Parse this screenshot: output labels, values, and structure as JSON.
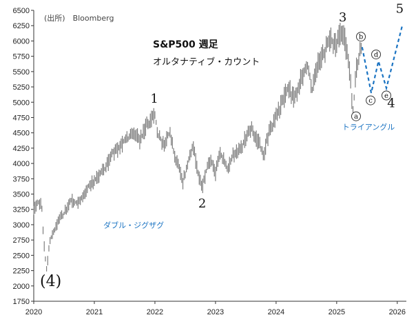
{
  "chart_data": {
    "type": "candlestick",
    "source_note": "(出所)　Bloomberg",
    "title": "S&P500 週足",
    "subtitle": "オルタナティブ・カウント",
    "y_axis": {
      "min": 1750,
      "max": 6500,
      "ticks": [
        1750,
        2000,
        2250,
        2500,
        2750,
        3000,
        3250,
        3500,
        3750,
        4000,
        4250,
        4500,
        4750,
        5000,
        5250,
        5500,
        5750,
        6000,
        6250,
        6500
      ]
    },
    "x_axis": {
      "min": 2020.0,
      "max": 2026.15,
      "ticks": [
        2020,
        2021,
        2022,
        2023,
        2024,
        2025,
        2026
      ]
    },
    "price_path": [
      [
        2020.0,
        3230
      ],
      [
        2020.08,
        3380
      ],
      [
        2020.13,
        3330
      ],
      [
        2020.17,
        2680
      ],
      [
        2020.21,
        2240
      ],
      [
        2020.27,
        2760
      ],
      [
        2020.35,
        2950
      ],
      [
        2020.45,
        3120
      ],
      [
        2020.55,
        3260
      ],
      [
        2020.62,
        3400
      ],
      [
        2020.7,
        3360
      ],
      [
        2020.82,
        3440
      ],
      [
        2020.92,
        3660
      ],
      [
        2021.0,
        3720
      ],
      [
        2021.1,
        3830
      ],
      [
        2021.2,
        3940
      ],
      [
        2021.3,
        4180
      ],
      [
        2021.4,
        4240
      ],
      [
        2021.5,
        4380
      ],
      [
        2021.6,
        4430
      ],
      [
        2021.7,
        4480
      ],
      [
        2021.75,
        4360
      ],
      [
        2021.85,
        4600
      ],
      [
        2021.93,
        4700
      ],
      [
        2022.0,
        4780
      ],
      [
        2022.05,
        4470
      ],
      [
        2022.15,
        4300
      ],
      [
        2022.25,
        4520
      ],
      [
        2022.32,
        4150
      ],
      [
        2022.4,
        3900
      ],
      [
        2022.46,
        3670
      ],
      [
        2022.55,
        4050
      ],
      [
        2022.63,
        4280
      ],
      [
        2022.72,
        3780
      ],
      [
        2022.78,
        3590
      ],
      [
        2022.85,
        3900
      ],
      [
        2022.93,
        4050
      ],
      [
        2023.0,
        3840
      ],
      [
        2023.08,
        4150
      ],
      [
        2023.2,
        3920
      ],
      [
        2023.3,
        4160
      ],
      [
        2023.4,
        4200
      ],
      [
        2023.5,
        4440
      ],
      [
        2023.58,
        4580
      ],
      [
        2023.68,
        4400
      ],
      [
        2023.8,
        4150
      ],
      [
        2023.88,
        4500
      ],
      [
        2024.0,
        4760
      ],
      [
        2024.1,
        5000
      ],
      [
        2024.2,
        5230
      ],
      [
        2024.3,
        5050
      ],
      [
        2024.4,
        5350
      ],
      [
        2024.52,
        5600
      ],
      [
        2024.6,
        5200
      ],
      [
        2024.68,
        5620
      ],
      [
        2024.8,
        5820
      ],
      [
        2024.9,
        6050
      ],
      [
        2025.0,
        5900
      ],
      [
        2025.05,
        6120
      ],
      [
        2025.12,
        6100
      ],
      [
        2025.2,
        5600
      ],
      [
        2025.27,
        4850
      ],
      [
        2025.32,
        5500
      ],
      [
        2025.38,
        5800
      ],
      [
        2025.42,
        5900
      ]
    ],
    "projection": [
      [
        2025.42,
        5900
      ],
      [
        2025.57,
        5150
      ],
      [
        2025.69,
        5670
      ],
      [
        2025.82,
        5230
      ],
      [
        2026.08,
        6240
      ]
    ],
    "wave_labels": [
      {
        "text": "(4)",
        "x": 2020.28,
        "y": 2000
      },
      {
        "text": "1",
        "x": 2021.99,
        "y": 4990
      },
      {
        "text": "2",
        "x": 2022.78,
        "y": 3280
      },
      {
        "text": "3",
        "x": 2025.1,
        "y": 6320
      },
      {
        "text": "4",
        "x": 2025.9,
        "y": 4920
      },
      {
        "text": "5",
        "x": 2026.04,
        "y": 6460
      }
    ],
    "sub_wave_labels": [
      {
        "text": "a",
        "x": 2025.32,
        "y": 4770
      },
      {
        "text": "b",
        "x": 2025.4,
        "y": 6070
      },
      {
        "text": "c",
        "x": 2025.56,
        "y": 5030
      },
      {
        "text": "d",
        "x": 2025.65,
        "y": 5780
      },
      {
        "text": "e",
        "x": 2025.82,
        "y": 5110
      }
    ],
    "annotations": [
      {
        "text": "ダブル・ジグザグ",
        "x": 2021.15,
        "y": 2950
      },
      {
        "text": "トライアングル",
        "x": 2025.09,
        "y": 4550
      }
    ],
    "colors": {
      "bars": "#777777",
      "projection": "#1a73c2",
      "annotation": "#1a73c2",
      "axis": "#333333"
    }
  }
}
